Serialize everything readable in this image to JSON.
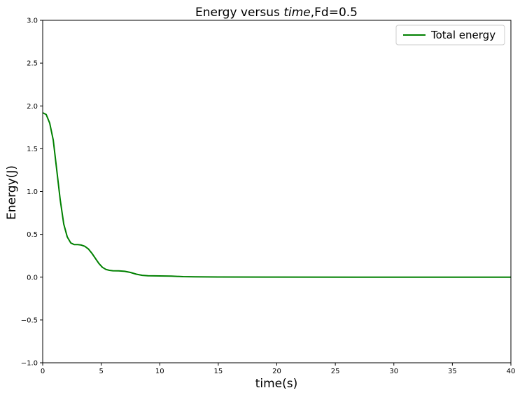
{
  "chart_data": {
    "type": "line",
    "title_prefix": "Energy versus ",
    "title_italic": "time",
    "title_suffix": ",Fd=0.5",
    "xlabel": "time(s)",
    "ylabel": "Energy(J)",
    "xlim": [
      0,
      40
    ],
    "ylim": [
      -1.0,
      3.0
    ],
    "xticks": [
      0,
      5,
      10,
      15,
      20,
      25,
      30,
      35,
      40
    ],
    "xtick_labels": [
      "0",
      "5",
      "10",
      "15",
      "20",
      "25",
      "30",
      "35",
      "40"
    ],
    "yticks": [
      -1.0,
      -0.5,
      0.0,
      0.5,
      1.0,
      1.5,
      2.0,
      2.5,
      3.0
    ],
    "ytick_labels": [
      "−1.0",
      "−0.5",
      "0.0",
      "0.5",
      "1.0",
      "1.5",
      "2.0",
      "2.5",
      "3.0"
    ],
    "grid": false,
    "legend_position": "top-right",
    "series": [
      {
        "name": "Total energy",
        "color": "#008000",
        "x": [
          0,
          0.3,
          0.6,
          0.9,
          1.2,
          1.5,
          1.8,
          2.1,
          2.4,
          2.7,
          3.0,
          3.3,
          3.6,
          3.9,
          4.2,
          4.5,
          4.8,
          5.1,
          5.4,
          5.7,
          6.0,
          6.5,
          7.0,
          7.5,
          8.0,
          8.5,
          9.0,
          10.0,
          11.0,
          12.0,
          13.0,
          15.0,
          20.0,
          30.0,
          40.0
        ],
        "y": [
          1.92,
          1.9,
          1.8,
          1.6,
          1.25,
          0.9,
          0.62,
          0.47,
          0.4,
          0.38,
          0.38,
          0.375,
          0.36,
          0.33,
          0.28,
          0.22,
          0.16,
          0.115,
          0.09,
          0.08,
          0.075,
          0.073,
          0.068,
          0.055,
          0.035,
          0.022,
          0.016,
          0.014,
          0.012,
          0.006,
          0.004,
          0.002,
          0.001,
          0.0,
          0.0
        ]
      }
    ]
  }
}
